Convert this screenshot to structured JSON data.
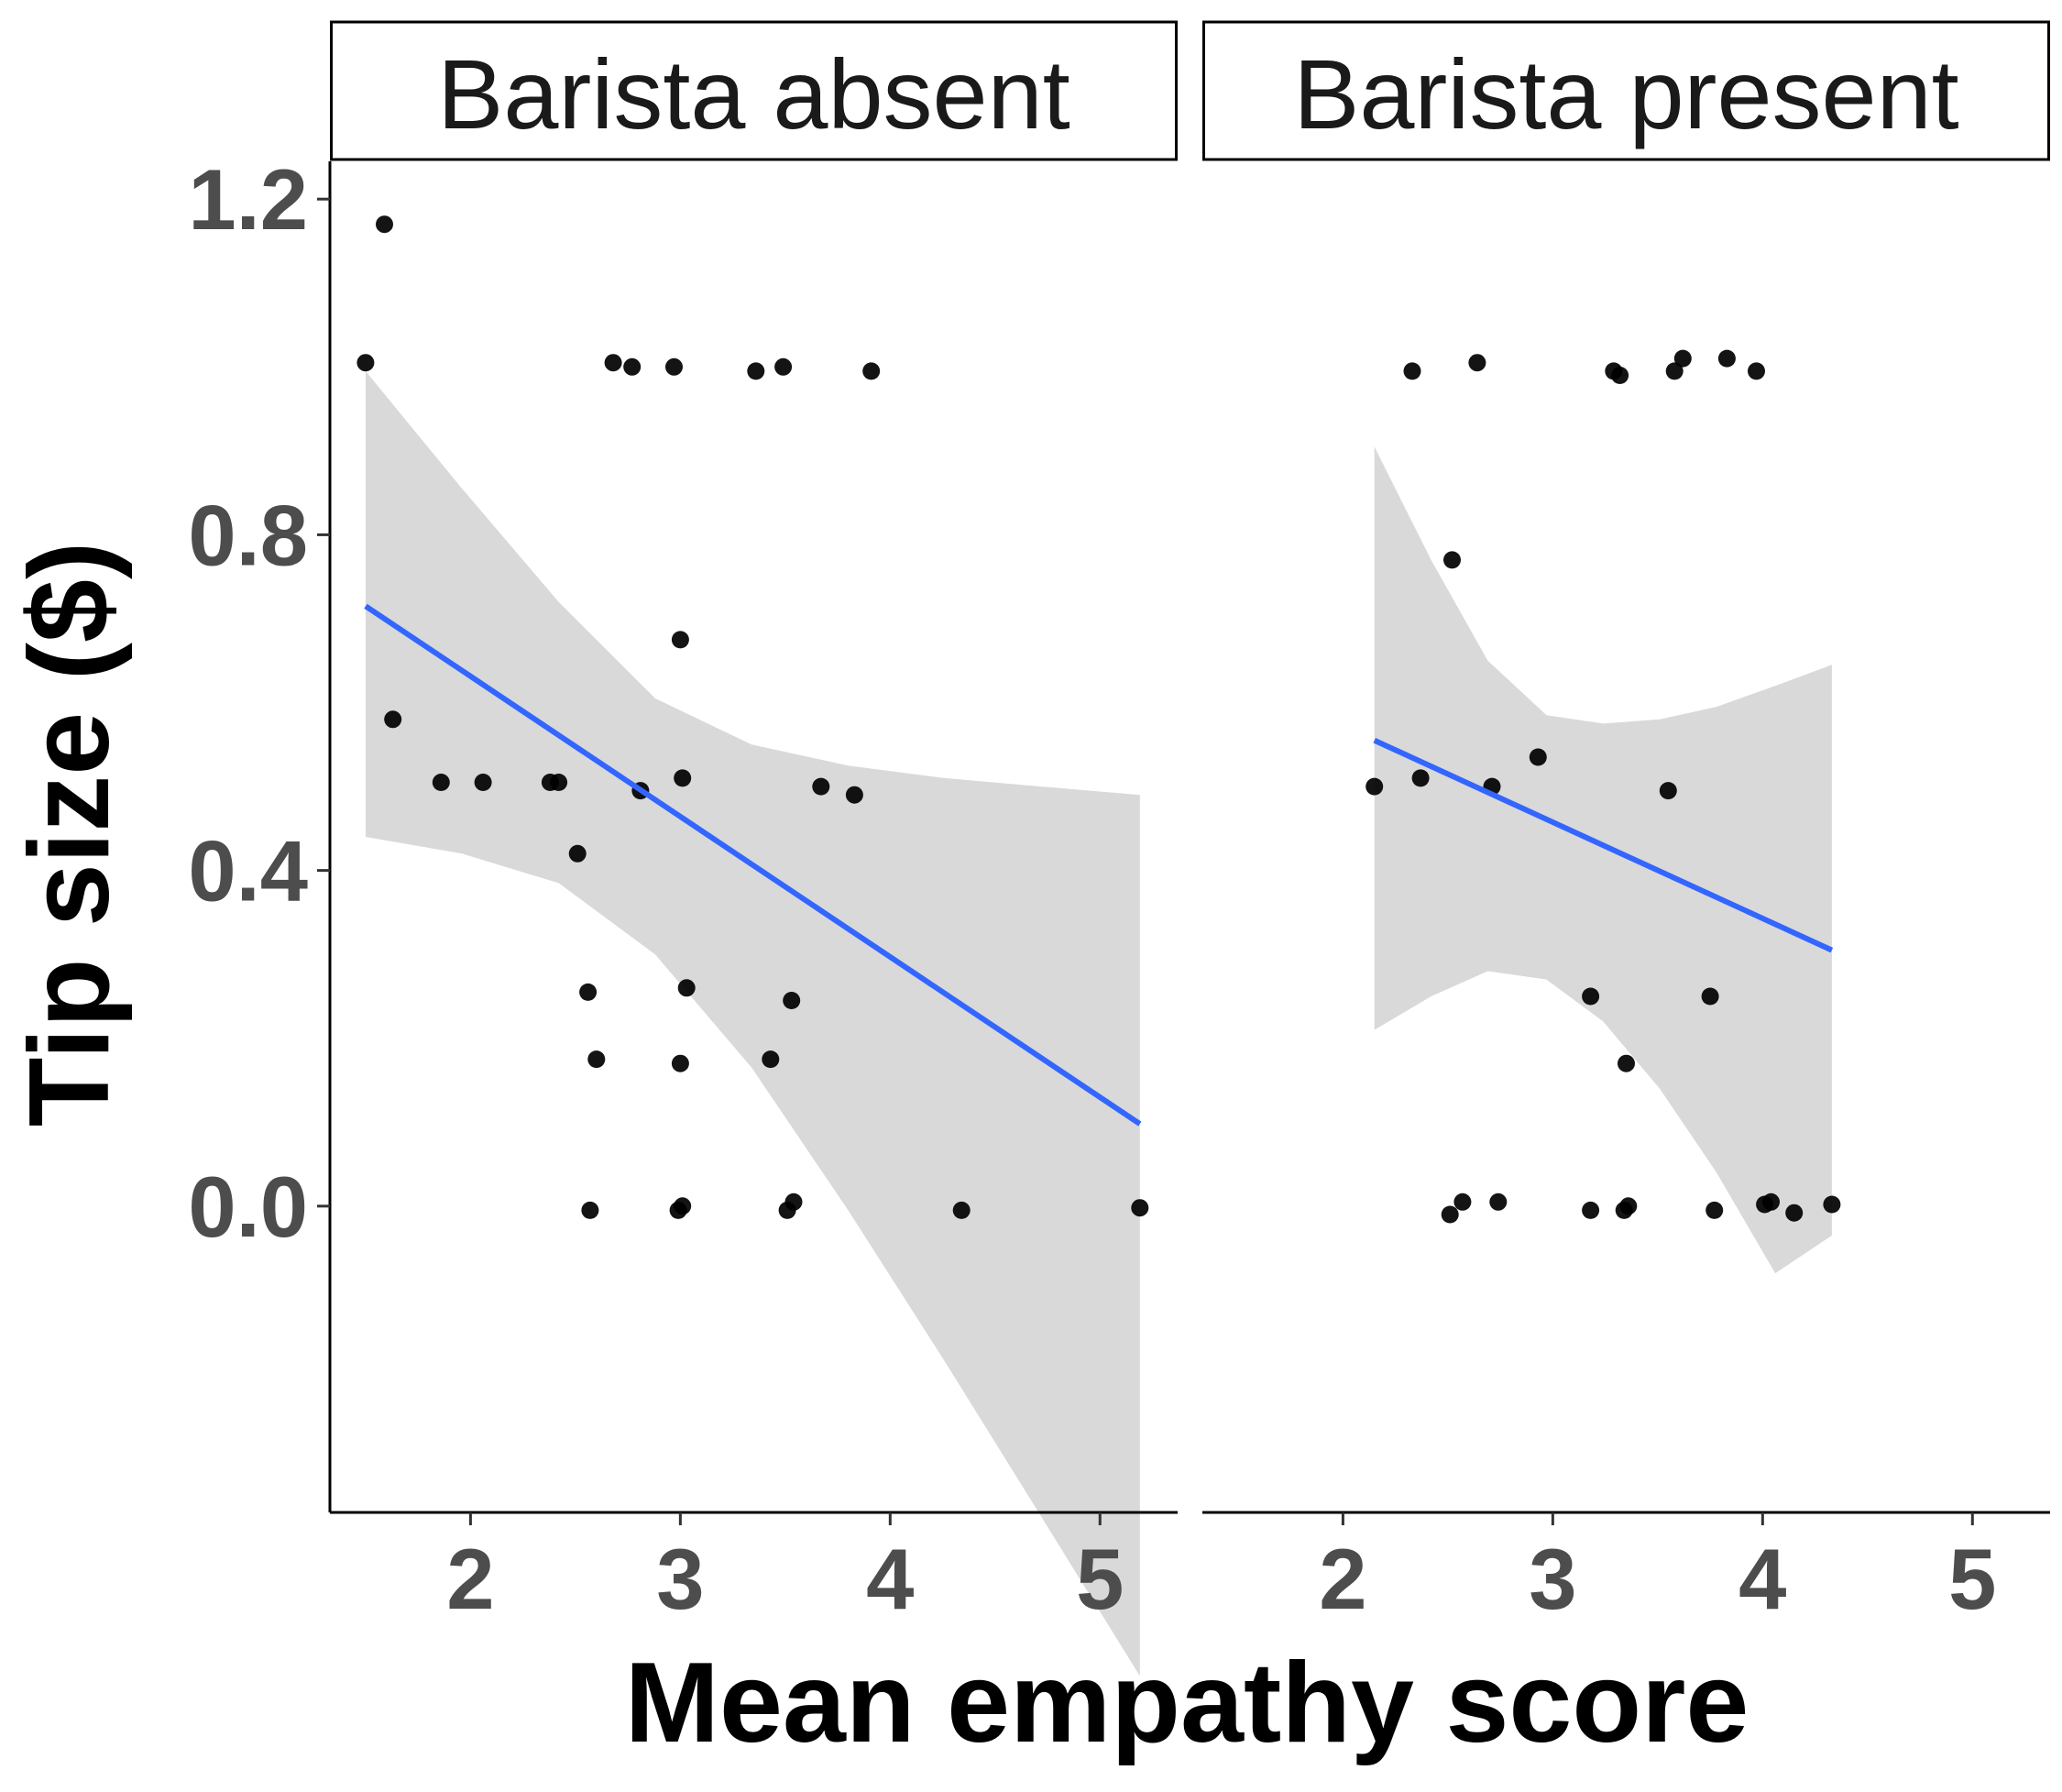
{
  "chart_data": {
    "type": "scatter",
    "xlabel": "Mean empathy score",
    "ylabel": "Tip size ($)",
    "xlim": [
      1.33,
      5.37
    ],
    "ylim": [
      -0.365,
      1.245
    ],
    "xticks": [
      "2",
      "3",
      "4",
      "5"
    ],
    "yticks": [
      "0.0",
      "0.4",
      "0.8",
      "1.2"
    ],
    "grid": false,
    "colors": {
      "point": "#000000",
      "fit_line": "#3366ff",
      "ribbon": "#d9d9d9",
      "strip_text": "#1a1a1a",
      "tick_label": "#4d4d4d"
    },
    "panels": [
      {
        "strip": "Barista absent",
        "points": [
          [
            1.5,
            1.005
          ],
          [
            1.59,
            1.17
          ],
          [
            1.63,
            0.58
          ],
          [
            1.86,
            0.505
          ],
          [
            2.06,
            0.505
          ],
          [
            2.38,
            0.505
          ],
          [
            2.42,
            0.505
          ],
          [
            2.51,
            0.42
          ],
          [
            2.56,
            0.255
          ],
          [
            2.57,
            -0.005
          ],
          [
            2.6,
            0.175
          ],
          [
            2.68,
            1.005
          ],
          [
            2.77,
            1.0
          ],
          [
            2.81,
            0.495
          ],
          [
            2.97,
            1.0
          ],
          [
            2.99,
            -0.005
          ],
          [
            3.0,
            0.675
          ],
          [
            3.0,
            0.17
          ],
          [
            3.01,
            0.0
          ],
          [
            3.01,
            0.51
          ],
          [
            3.03,
            0.26
          ],
          [
            3.36,
            0.995
          ],
          [
            3.43,
            0.175
          ],
          [
            3.49,
            1.0
          ],
          [
            3.51,
            -0.005
          ],
          [
            3.53,
            0.245
          ],
          [
            3.54,
            0.005
          ],
          [
            3.67,
            0.5
          ],
          [
            3.83,
            0.49
          ],
          [
            3.91,
            0.995
          ],
          [
            4.34,
            -0.005
          ],
          [
            5.19,
            -0.002
          ]
        ],
        "fit": {
          "x": [
            1.5,
            5.19
          ],
          "y": [
            0.715,
            0.098
          ]
        },
        "ribbon": {
          "x": [
            1.5,
            1.96,
            2.42,
            2.88,
            3.34,
            3.8,
            4.26,
            4.72,
            5.19
          ],
          "upper": [
            0.995,
            0.855,
            0.72,
            0.605,
            0.55,
            0.525,
            0.51,
            0.5,
            0.49
          ],
          "lower": [
            0.44,
            0.42,
            0.385,
            0.3,
            0.165,
            -0.005,
            -0.185,
            -0.37,
            -0.56
          ]
        }
      },
      {
        "strip": "Barista present",
        "points": [
          [
            2.15,
            0.5
          ],
          [
            2.33,
            0.995
          ],
          [
            2.37,
            0.51
          ],
          [
            2.51,
            -0.01
          ],
          [
            2.52,
            0.77
          ],
          [
            2.57,
            0.005
          ],
          [
            2.64,
            1.005
          ],
          [
            2.71,
            0.5
          ],
          [
            2.74,
            0.005
          ],
          [
            2.93,
            0.535
          ],
          [
            3.18,
            0.25
          ],
          [
            3.18,
            -0.005
          ],
          [
            3.29,
            0.995
          ],
          [
            3.32,
            0.99
          ],
          [
            3.34,
            -0.005
          ],
          [
            3.35,
            0.17
          ],
          [
            3.36,
            0.0
          ],
          [
            3.55,
            0.495
          ],
          [
            3.58,
            0.995
          ],
          [
            3.62,
            1.01
          ],
          [
            3.75,
            0.25
          ],
          [
            3.77,
            -0.005
          ],
          [
            3.83,
            1.01
          ],
          [
            3.97,
            0.995
          ],
          [
            4.01,
            0.002
          ],
          [
            4.04,
            0.005
          ],
          [
            4.15,
            -0.008
          ],
          [
            4.33,
            0.002
          ]
        ],
        "fit": {
          "x": [
            2.15,
            4.33
          ],
          "y": [
            0.555,
            0.305
          ]
        },
        "ribbon": {
          "x": [
            2.15,
            2.42,
            2.69,
            2.97,
            3.24,
            3.51,
            3.78,
            4.06,
            4.33
          ],
          "upper": [
            0.905,
            0.77,
            0.65,
            0.585,
            0.575,
            0.58,
            0.595,
            0.62,
            0.645
          ],
          "lower": [
            0.21,
            0.25,
            0.28,
            0.27,
            0.22,
            0.14,
            0.04,
            -0.08,
            -0.035
          ]
        }
      }
    ]
  }
}
